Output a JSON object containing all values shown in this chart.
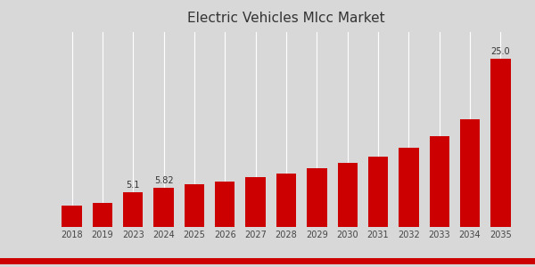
{
  "title": "Electric Vehicles Mlcc Market",
  "categories": [
    "2018",
    "2019",
    "2023",
    "2024",
    "2025",
    "2026",
    "2027",
    "2028",
    "2029",
    "2030",
    "2031",
    "2032",
    "2033",
    "2034",
    "2035"
  ],
  "values": [
    3.2,
    3.6,
    5.1,
    5.82,
    6.3,
    6.8,
    7.4,
    7.9,
    8.7,
    9.5,
    10.5,
    11.8,
    13.5,
    16.0,
    25.0
  ],
  "bar_color": "#cc0000",
  "label_values": {
    "2023": "5.1",
    "2024": "5.82",
    "2035": "25.0"
  },
  "background_color": "#d8d8d8",
  "grid_color": "#ffffff",
  "title_fontsize": 11,
  "ylabel_fontsize": 7.5,
  "tick_fontsize": 7,
  "label_fontsize": 7
}
